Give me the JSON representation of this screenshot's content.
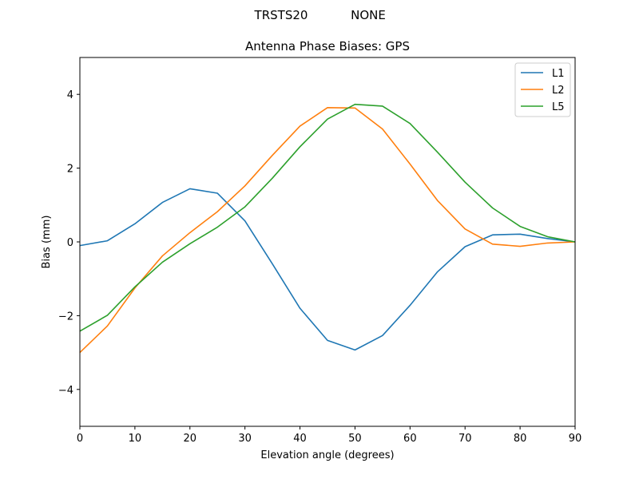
{
  "chart_data": {
    "type": "line",
    "suptitle_left": "TRSTS20",
    "suptitle_right": "NONE",
    "title": "Antenna Phase Biases: GPS",
    "xlabel": "Elevation angle (degrees)",
    "ylabel": "Bias (mm)",
    "xlim": [
      0,
      90
    ],
    "ylim": [
      -5,
      5
    ],
    "xticks": [
      0,
      10,
      20,
      30,
      40,
      50,
      60,
      70,
      80,
      90
    ],
    "yticks": [
      -4,
      -2,
      0,
      2,
      4
    ],
    "ytick_labels": [
      "−4",
      "−2",
      "0",
      "2",
      "4"
    ],
    "legend_position": "top-right",
    "x": [
      0,
      5,
      10,
      15,
      20,
      25,
      30,
      35,
      40,
      45,
      50,
      55,
      60,
      65,
      70,
      75,
      80,
      85,
      90
    ],
    "series": [
      {
        "name": "L1",
        "color": "#1f77b4",
        "values": [
          -0.1,
          0.03,
          0.49,
          1.07,
          1.44,
          1.32,
          0.57,
          -0.6,
          -1.8,
          -2.67,
          -2.93,
          -2.54,
          -1.72,
          -0.81,
          -0.13,
          0.19,
          0.21,
          0.09,
          0.0
        ]
      },
      {
        "name": "L2",
        "color": "#ff7f0e",
        "values": [
          -3.0,
          -2.28,
          -1.25,
          -0.38,
          0.25,
          0.82,
          1.52,
          2.35,
          3.14,
          3.64,
          3.63,
          3.06,
          2.11,
          1.12,
          0.35,
          -0.06,
          -0.12,
          -0.03,
          0.0
        ]
      },
      {
        "name": "L5",
        "color": "#2ca02c",
        "values": [
          -2.42,
          -1.99,
          -1.22,
          -0.55,
          -0.05,
          0.4,
          0.95,
          1.73,
          2.58,
          3.33,
          3.73,
          3.68,
          3.21,
          2.43,
          1.62,
          0.92,
          0.42,
          0.14,
          0.0
        ]
      }
    ]
  }
}
